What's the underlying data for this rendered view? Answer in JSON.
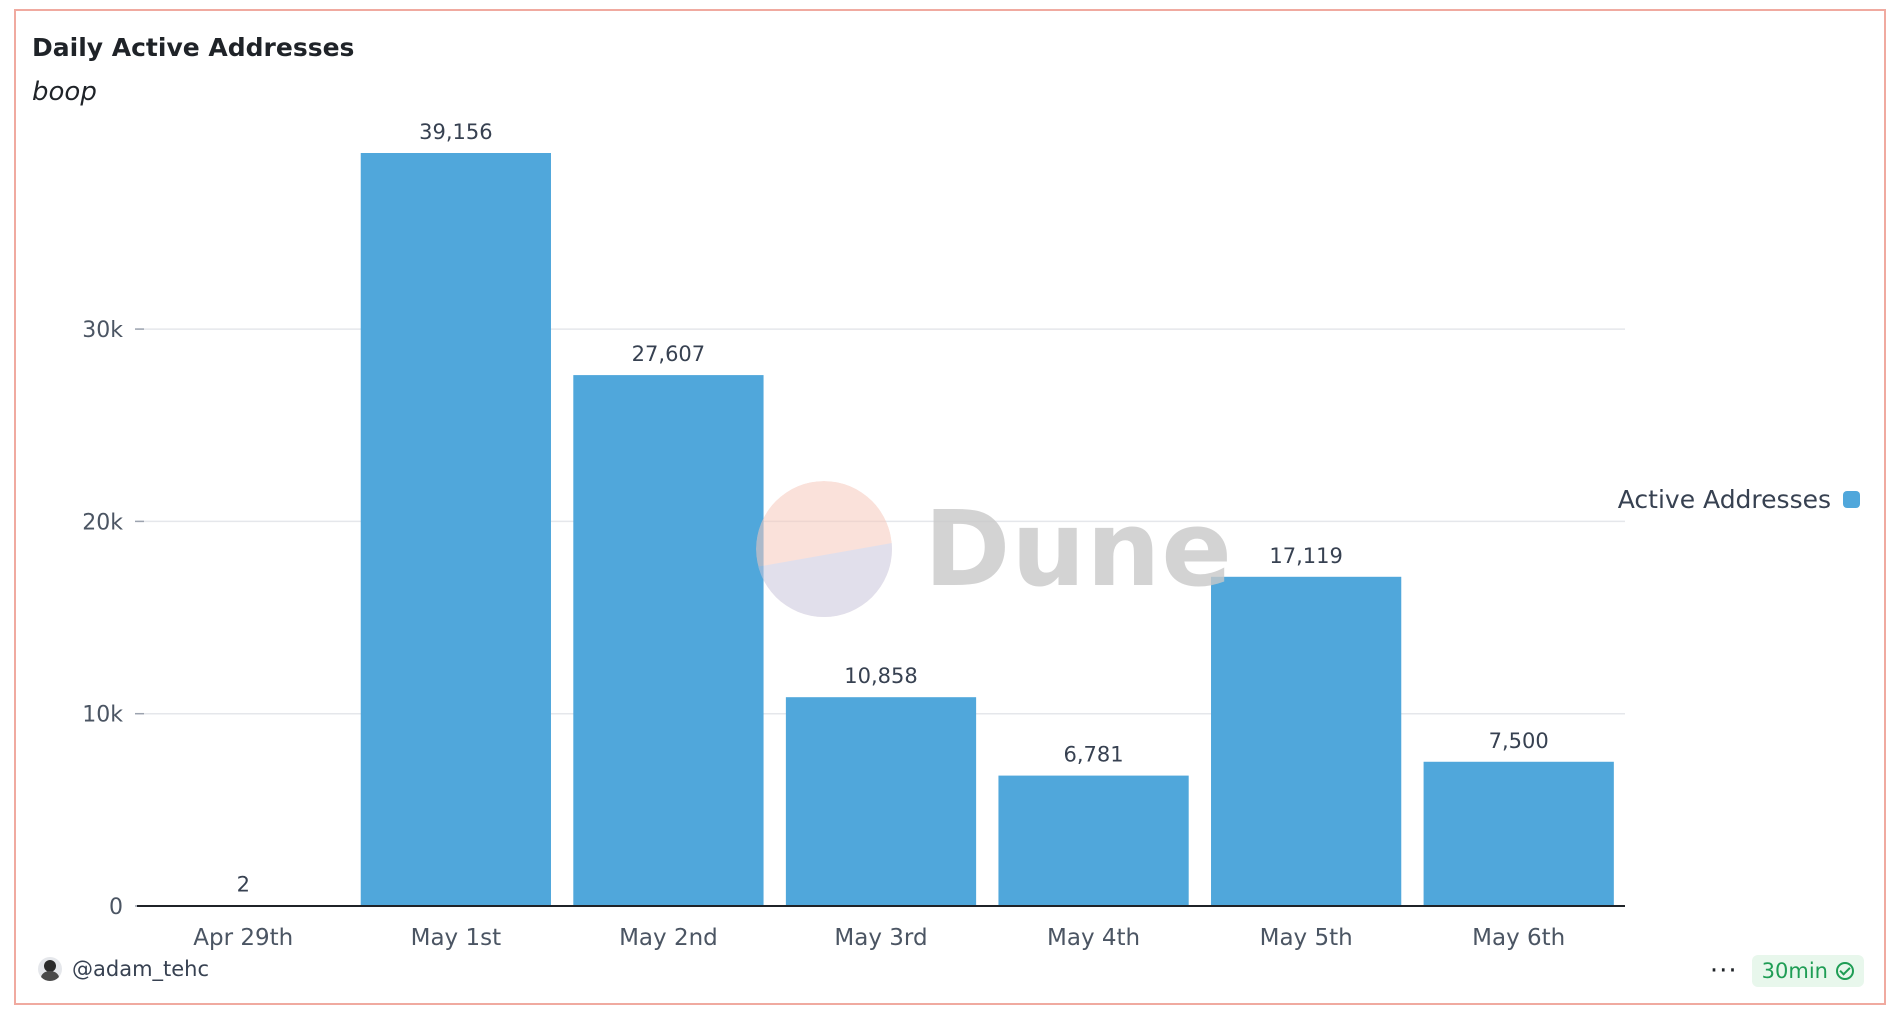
{
  "header": {
    "title": "Daily Active Addresses",
    "subtitle": "boop"
  },
  "chart_data": {
    "type": "bar",
    "categories": [
      "Apr 29th",
      "May 1st",
      "May 2nd",
      "May 3rd",
      "May 4th",
      "May 5th",
      "May 6th"
    ],
    "series": [
      {
        "name": "Active Addresses",
        "values": [
          2,
          39156,
          27607,
          10858,
          6781,
          17119,
          7500
        ]
      }
    ],
    "data_labels": [
      "2",
      "39,156",
      "27,607",
      "10,858",
      "6,781",
      "17,119",
      "7,500"
    ],
    "y_ticks": [
      0,
      10000,
      20000,
      30000
    ],
    "y_tick_labels": [
      "0",
      "10k",
      "20k",
      "30k"
    ],
    "ylim": [
      0,
      39156
    ],
    "grid": true,
    "legend_position": "right",
    "bar_color": "#50a7db"
  },
  "legend": {
    "label": "Active Addresses",
    "color": "#50a7db"
  },
  "watermark": {
    "text": "Dune",
    "logo_colors": [
      "#f6c9bd",
      "#c9c6dc"
    ]
  },
  "footer": {
    "author": "@adam_tehc",
    "more_icon": "···",
    "refresh_interval": "30min",
    "refresh_color": "#1f9d55"
  }
}
